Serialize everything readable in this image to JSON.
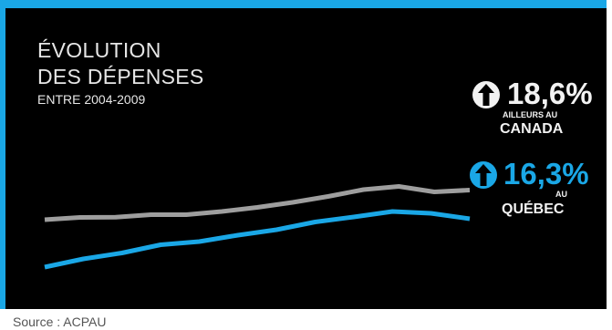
{
  "title_line1": "ÉVOLUTION",
  "title_line2": "DES DÉPENSES",
  "subtitle": "ENTRE 2004-2009",
  "source": "Source : ACPAU",
  "colors": {
    "frame": "#1aa7e6",
    "panel": "#000000",
    "canada_line": "#9e9e9e",
    "quebec_line": "#1aa7e6",
    "text": "#e6e6e6"
  },
  "callouts": {
    "canada": {
      "icon": "up-arrow-icon",
      "percent": "18,6%",
      "qualifier": "AILLEURS AU",
      "place": "CANADA"
    },
    "quebec": {
      "icon": "up-arrow-icon",
      "percent": "16,3%",
      "qualifier": "AU",
      "place": "QUÉBEC"
    }
  },
  "chart_data": {
    "type": "line",
    "title": "ÉVOLUTION DES DÉPENSES",
    "subtitle": "ENTRE 2004-2009",
    "axes_shown": false,
    "grid": false,
    "series": [
      {
        "name": "AILLEURS AU CANADA",
        "color": "#9e9e9e",
        "values": [
          0,
          2.5,
          2.7,
          5.5,
          5.5,
          9,
          13.5,
          19,
          25.5,
          33,
          36.5,
          30.5,
          32.5
        ]
      },
      {
        "name": "AU QUÉBEC",
        "color": "#1aa7e6",
        "values": [
          -52,
          -43,
          -36.5,
          -27.5,
          -24,
          -17,
          -11,
          -2.5,
          3,
          9,
          7,
          1
        ]
      }
    ]
  }
}
